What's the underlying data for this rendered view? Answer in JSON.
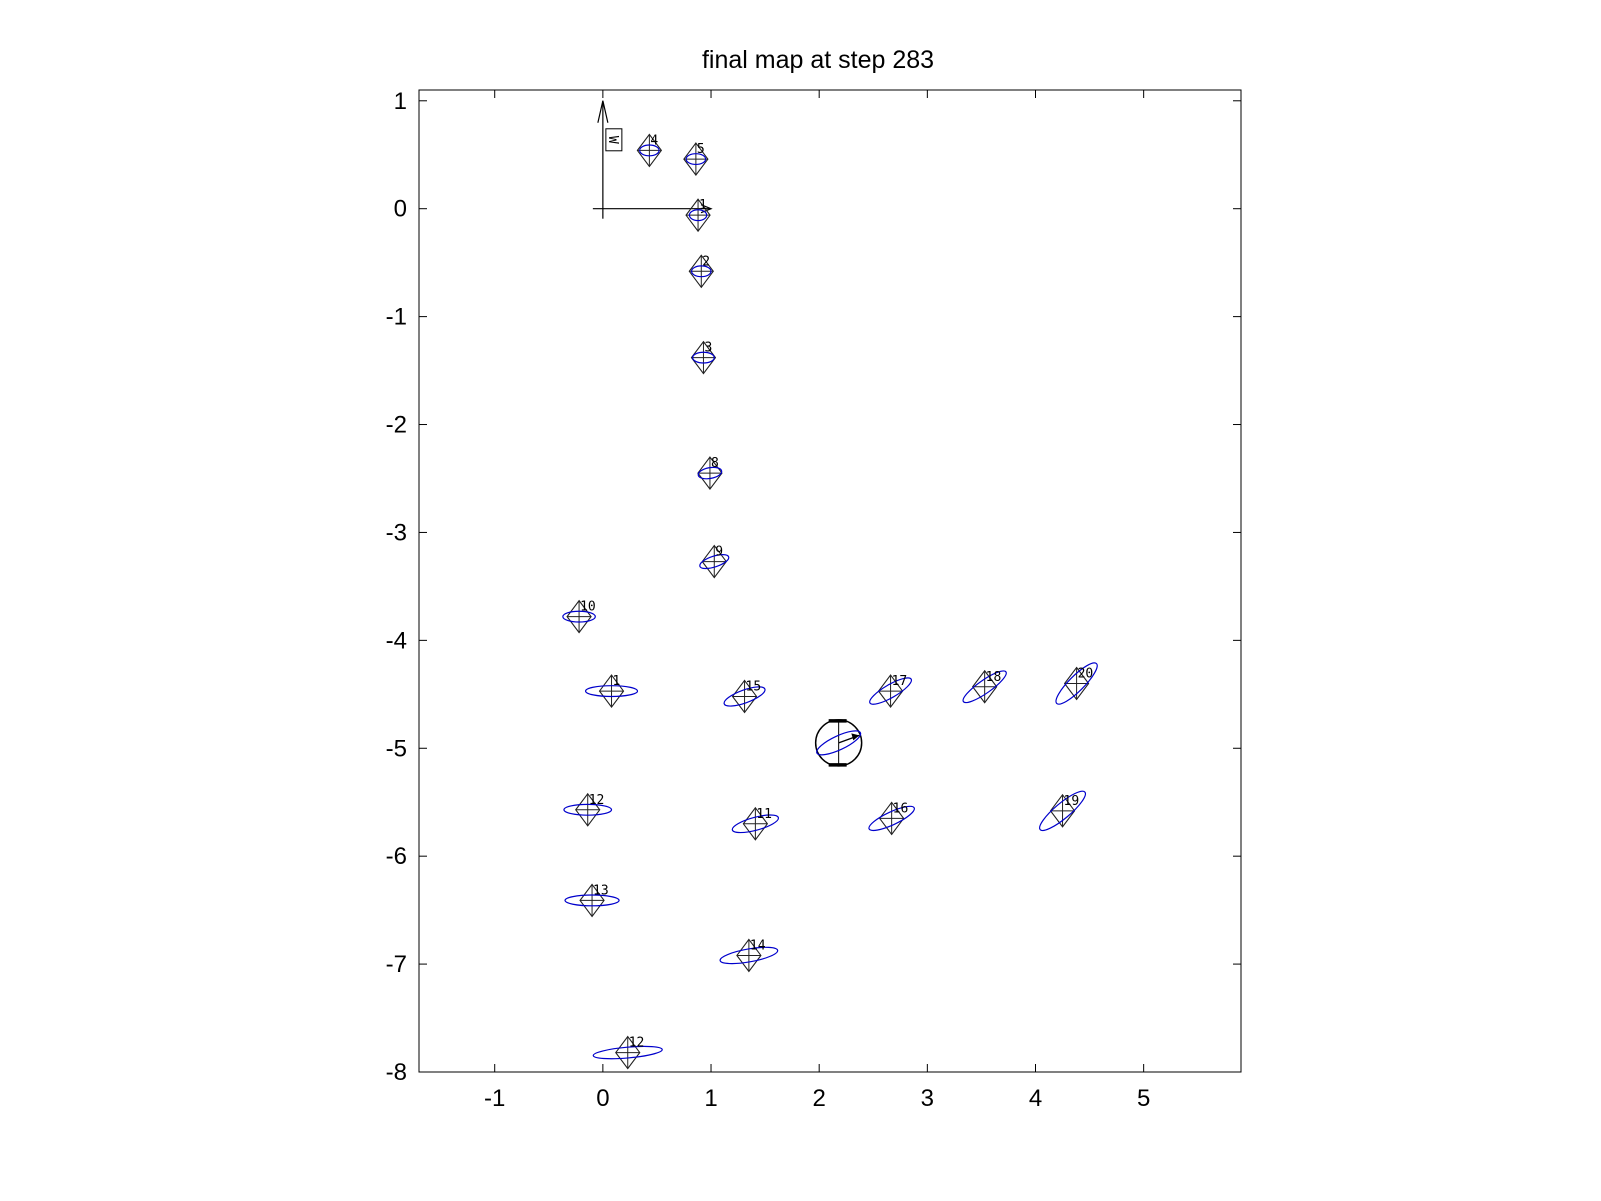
{
  "chart_data": {
    "type": "scatter",
    "title": "final map at step 283",
    "xlabel": "",
    "ylabel": "",
    "xlim": [
      -1.7,
      5.9
    ],
    "ylim": [
      -8.0,
      1.1
    ],
    "xticks": [
      -1,
      0,
      1,
      2,
      3,
      4,
      5
    ],
    "yticks": [
      -8,
      -7,
      -6,
      -5,
      -4,
      -3,
      -2,
      -1,
      0,
      1
    ],
    "grid": false,
    "origin_frame": {
      "x": 0,
      "y": 0,
      "x_axis_to": [
        1.0,
        0
      ],
      "y_axis_to": [
        0,
        1.0
      ],
      "label": "W"
    },
    "robot": {
      "x": 2.18,
      "y": -4.95,
      "heading_deg": 20
    },
    "colors": {
      "landmark": "#000000",
      "covariance": "#0000cc",
      "axes": "#000000"
    },
    "landmarks": [
      {
        "id": "1",
        "x": 0.88,
        "y": -0.06,
        "ell_rx": 0.08,
        "ell_ry": 0.05,
        "ell_angle": 0
      },
      {
        "id": "2",
        "x": 0.91,
        "y": -0.58,
        "ell_rx": 0.09,
        "ell_ry": 0.05,
        "ell_angle": 0
      },
      {
        "id": "3",
        "x": 0.93,
        "y": -1.38,
        "ell_rx": 0.1,
        "ell_ry": 0.05,
        "ell_angle": 0
      },
      {
        "id": "4",
        "x": 0.43,
        "y": 0.54,
        "ell_rx": 0.09,
        "ell_ry": 0.05,
        "ell_angle": 0
      },
      {
        "id": "5",
        "x": 0.86,
        "y": 0.46,
        "ell_rx": 0.09,
        "ell_ry": 0.05,
        "ell_angle": 0
      },
      {
        "id": "8",
        "x": 0.99,
        "y": -2.45,
        "ell_rx": 0.11,
        "ell_ry": 0.05,
        "ell_angle": 10
      },
      {
        "id": "9",
        "x": 1.03,
        "y": -3.27,
        "ell_rx": 0.14,
        "ell_ry": 0.05,
        "ell_angle": 18
      },
      {
        "id": "10",
        "x": -0.22,
        "y": -3.78,
        "ell_rx": 0.15,
        "ell_ry": 0.05,
        "ell_angle": 0
      },
      {
        "id": "1",
        "x": 0.08,
        "y": -4.47,
        "ell_rx": 0.24,
        "ell_ry": 0.05,
        "ell_angle": 0
      },
      {
        "id": "15",
        "x": 1.31,
        "y": -4.52,
        "ell_rx": 0.2,
        "ell_ry": 0.06,
        "ell_angle": 20
      },
      {
        "id": "17",
        "x": 2.66,
        "y": -4.47,
        "ell_rx": 0.22,
        "ell_ry": 0.06,
        "ell_angle": 30
      },
      {
        "id": "18",
        "x": 3.53,
        "y": -4.43,
        "ell_rx": 0.24,
        "ell_ry": 0.06,
        "ell_angle": 35
      },
      {
        "id": "20",
        "x": 4.38,
        "y": -4.4,
        "ell_rx": 0.26,
        "ell_ry": 0.07,
        "ell_angle": 45
      },
      {
        "id": "12",
        "x": -0.14,
        "y": -5.57,
        "ell_rx": 0.22,
        "ell_ry": 0.05,
        "ell_angle": 0
      },
      {
        "id": "11",
        "x": 1.41,
        "y": -5.7,
        "ell_rx": 0.22,
        "ell_ry": 0.06,
        "ell_angle": 15
      },
      {
        "id": "16",
        "x": 2.67,
        "y": -5.65,
        "ell_rx": 0.23,
        "ell_ry": 0.06,
        "ell_angle": 25
      },
      {
        "id": "19",
        "x": 4.25,
        "y": -5.58,
        "ell_rx": 0.27,
        "ell_ry": 0.07,
        "ell_angle": 40
      },
      {
        "id": "13",
        "x": -0.1,
        "y": -6.41,
        "ell_rx": 0.25,
        "ell_ry": 0.05,
        "ell_angle": 0
      },
      {
        "id": "14",
        "x": 1.35,
        "y": -6.92,
        "ell_rx": 0.27,
        "ell_ry": 0.06,
        "ell_angle": 10
      },
      {
        "id": "12",
        "x": 0.23,
        "y": -7.82,
        "ell_rx": 0.32,
        "ell_ry": 0.05,
        "ell_angle": 5
      }
    ]
  }
}
